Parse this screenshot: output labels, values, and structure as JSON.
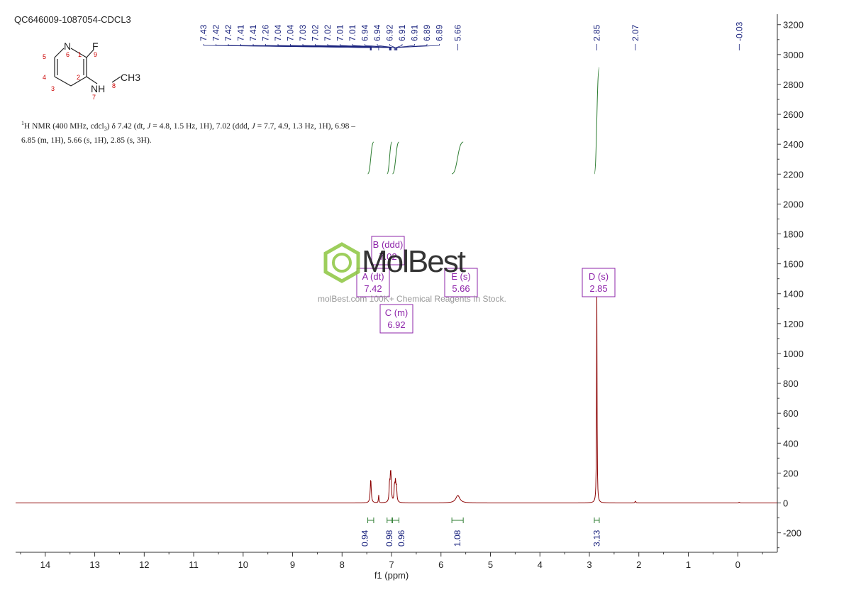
{
  "sample_id": "QC646009-1087054-CDCL3",
  "description": {
    "nucleus_sup": "1",
    "line1_pre": "H NMR (400 MHz, cdcl",
    "solvent_sub": "3",
    "line1_mid": ") δ 7.42 (dt, ",
    "j1_label": "J",
    "line1_post": " = 4.8, 1.5 Hz, 1H), 7.02 (ddd, ",
    "j2_label": "J",
    "line1_end": " = 7.7, 4.9, 1.3 Hz, 1H), 6.98 –",
    "line2": "6.85 (m, 1H), 5.66 (s, 1H), 2.85 (s, 3H)."
  },
  "structure": {
    "atoms": [
      {
        "label": "N",
        "num": "6"
      },
      {
        "label": "F",
        "num": "9"
      },
      {
        "label": "NH",
        "num": "7"
      },
      {
        "label": "CH3",
        "num": "8"
      }
    ],
    "ring_numbers": [
      "1",
      "2",
      "3",
      "4",
      "5"
    ],
    "colors": {
      "atom": "#222222",
      "number": "#cc0000"
    }
  },
  "watermark": {
    "brand": "MolBest",
    "tagline": "molBest.com 100K+ Chemical Reagents In Stock.",
    "logo_color": "#8cc63f"
  },
  "colors": {
    "spectrum": "#8b0000",
    "peak_labels": "#1a237e",
    "integral": "#2e7d32",
    "multiplet_box": "#8e24aa",
    "axis": "#333333"
  },
  "chart_data": {
    "type": "line",
    "xlabel": "f1 (ppm)",
    "xlim": [
      14.6,
      -0.8
    ],
    "ylim": [
      -330,
      3270
    ],
    "x_ticks": [
      14,
      13,
      12,
      11,
      10,
      9,
      8,
      7,
      6,
      5,
      4,
      3,
      2,
      1,
      0
    ],
    "y_ticks": [
      -200,
      0,
      200,
      400,
      600,
      800,
      1000,
      1200,
      1400,
      1600,
      1800,
      2000,
      2200,
      2400,
      2600,
      2800,
      3000,
      3200
    ],
    "peak_picks": [
      "7.43",
      "7.42",
      "7.42",
      "7.41",
      "7.41",
      "7.26",
      "7.04",
      "7.04",
      "7.03",
      "7.02",
      "7.02",
      "7.01",
      "7.01",
      "6.94",
      "6.94",
      "6.92",
      "6.91",
      "6.91",
      "6.89",
      "6.89",
      "5.66",
      "2.85",
      "2.07",
      "-0.03"
    ],
    "peaks": [
      {
        "ppm": 7.42,
        "height": 160,
        "width": 0.012
      },
      {
        "ppm": 7.26,
        "height": 55,
        "width": 0.006
      },
      {
        "ppm": 7.04,
        "height": 120,
        "width": 0.01
      },
      {
        "ppm": 7.02,
        "height": 140,
        "width": 0.01
      },
      {
        "ppm": 7.01,
        "height": 110,
        "width": 0.01
      },
      {
        "ppm": 6.94,
        "height": 105,
        "width": 0.01
      },
      {
        "ppm": 6.92,
        "height": 125,
        "width": 0.01
      },
      {
        "ppm": 6.9,
        "height": 95,
        "width": 0.01
      },
      {
        "ppm": 5.66,
        "height": 50,
        "width": 0.05
      },
      {
        "ppm": 2.85,
        "height": 1400,
        "width": 0.006
      },
      {
        "ppm": 2.07,
        "height": 12,
        "width": 0.01
      },
      {
        "ppm": -0.03,
        "height": 5,
        "width": 0.01
      }
    ],
    "integrals": [
      {
        "from": 7.48,
        "to": 7.36,
        "value": "0.94"
      },
      {
        "from": 7.09,
        "to": 6.99,
        "value": "0.98"
      },
      {
        "from": 6.98,
        "to": 6.85,
        "value": "0.96"
      },
      {
        "from": 5.78,
        "to": 5.55,
        "value": "1.08"
      },
      {
        "from": 2.9,
        "to": 2.8,
        "value": "3.13"
      }
    ],
    "multiplets": [
      {
        "letter": "A",
        "type": "dt",
        "shift": "7.42"
      },
      {
        "letter": "B",
        "type": "ddd",
        "shift": "7.02"
      },
      {
        "letter": "C",
        "type": "m",
        "shift": "6.92"
      },
      {
        "letter": "E",
        "type": "s",
        "shift": "5.66"
      },
      {
        "letter": "D",
        "type": "s",
        "shift": "2.85"
      }
    ]
  }
}
